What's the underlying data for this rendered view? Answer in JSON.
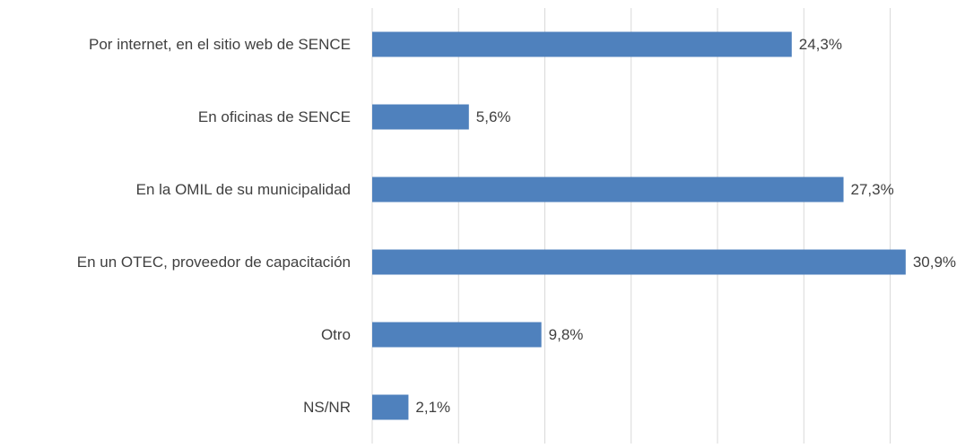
{
  "chart_data": {
    "type": "hbar",
    "categories": [
      "Por internet, en el sitio web de SENCE",
      "En oficinas de SENCE",
      "En la OMIL de su municipalidad",
      "En un OTEC, proveedor de capacitación",
      "Otro",
      "NS/NR"
    ],
    "values": [
      24.3,
      5.6,
      27.3,
      30.9,
      9.8,
      2.1
    ],
    "value_labels": [
      "24,3%",
      "5,6%",
      "27,3%",
      "30,9%",
      "9,8%",
      "2,1%"
    ],
    "color": "#4f81bd",
    "xlim": [
      0,
      35
    ],
    "xticks": [
      0,
      5,
      10,
      15,
      20,
      25,
      30
    ],
    "grid": true
  }
}
